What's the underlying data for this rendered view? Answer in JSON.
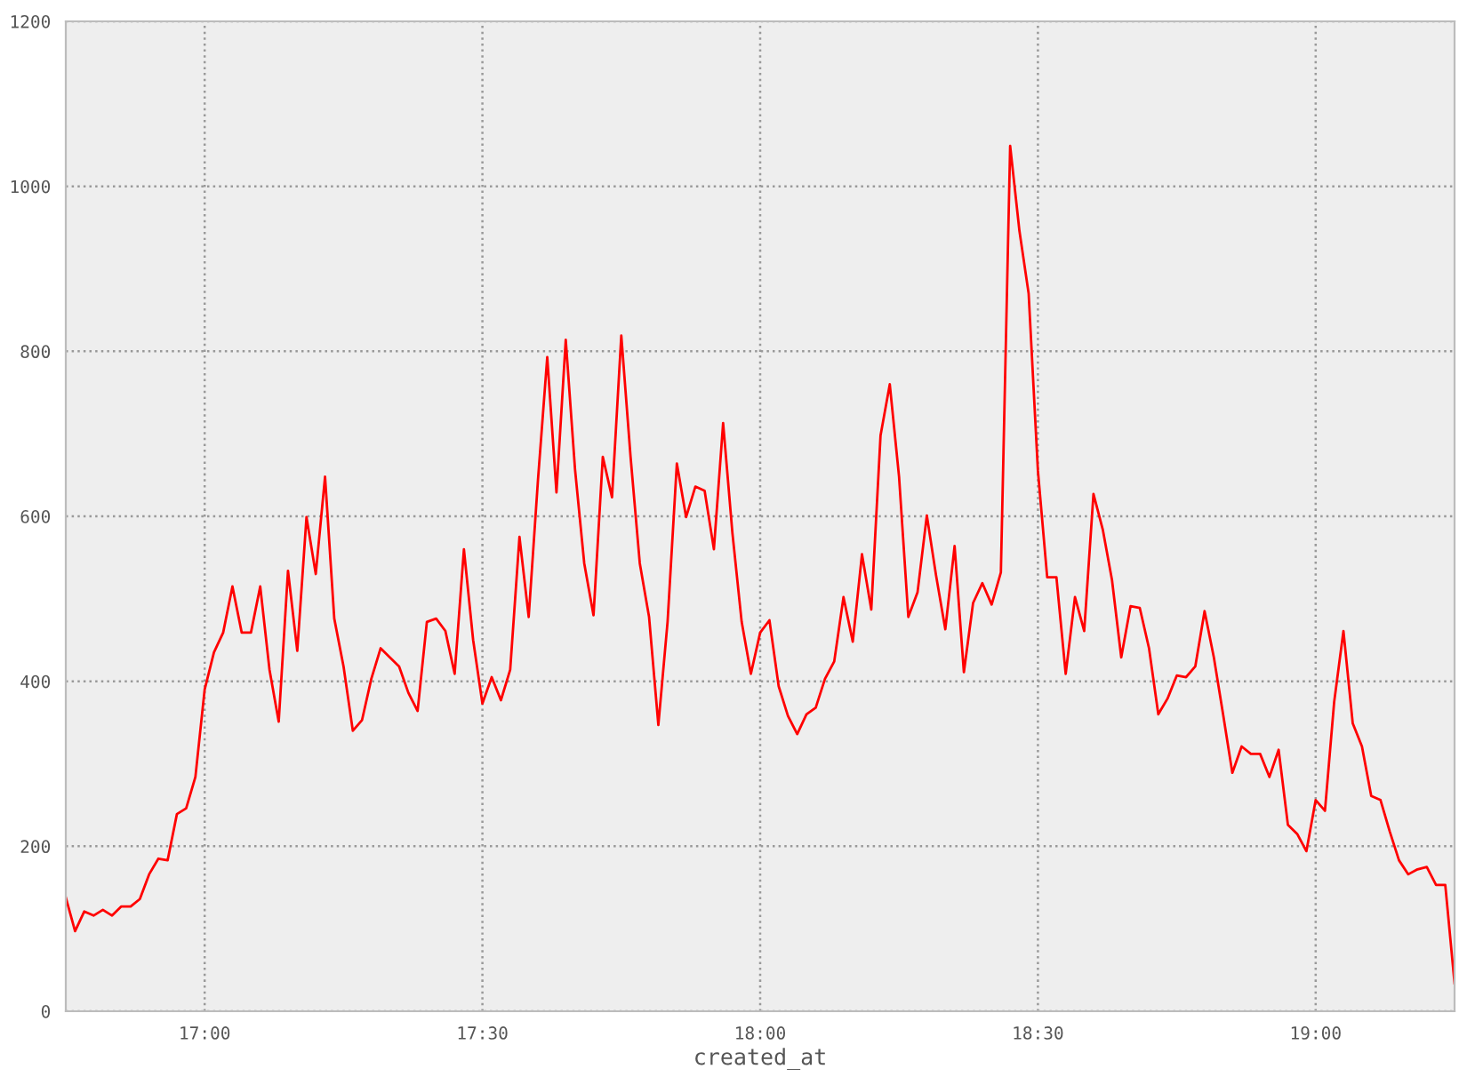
{
  "chart_data": {
    "type": "line",
    "xlabel": "created_at",
    "x": [
      16.75,
      16.7667,
      16.7833,
      16.8,
      16.8167,
      16.8333,
      16.85,
      16.8667,
      16.8833,
      16.9,
      16.9167,
      16.9333,
      16.95,
      16.9667,
      16.9833,
      17,
      17.0167,
      17.0333,
      17.05,
      17.0667,
      17.0833,
      17.1,
      17.1167,
      17.1333,
      17.15,
      17.1667,
      17.1833,
      17.2,
      17.2167,
      17.2333,
      17.25,
      17.2667,
      17.2833,
      17.3,
      17.3167,
      17.3333,
      17.35,
      17.3667,
      17.3833,
      17.4,
      17.4167,
      17.4333,
      17.45,
      17.4667,
      17.4833,
      17.5,
      17.5167,
      17.5333,
      17.55,
      17.5667,
      17.5833,
      17.6,
      17.6167,
      17.6333,
      17.65,
      17.6667,
      17.6833,
      17.7,
      17.7167,
      17.7333,
      17.75,
      17.7667,
      17.7833,
      17.8,
      17.8167,
      17.8333,
      17.85,
      17.8667,
      17.8833,
      17.9,
      17.9167,
      17.9333,
      17.95,
      17.9667,
      17.9833,
      18,
      18.0167,
      18.0333,
      18.05,
      18.0667,
      18.0833,
      18.1,
      18.1167,
      18.1333,
      18.15,
      18.1667,
      18.1833,
      18.2,
      18.2167,
      18.2333,
      18.25,
      18.2667,
      18.2833,
      18.3,
      18.3167,
      18.3333,
      18.35,
      18.3667,
      18.3833,
      18.4,
      18.4167,
      18.4333,
      18.45,
      18.4667,
      18.4833,
      18.5,
      18.5167,
      18.5333,
      18.55,
      18.5667,
      18.5833,
      18.6,
      18.6167,
      18.6333,
      18.65,
      18.6667,
      18.6833,
      18.7,
      18.7167,
      18.7333,
      18.75,
      18.7667,
      18.7833,
      18.8,
      18.8167,
      18.8333,
      18.85,
      18.8667,
      18.8833,
      18.9,
      18.9167,
      18.9333,
      18.95,
      18.9667,
      18.9833,
      19,
      19.0167,
      19.0333,
      19.05,
      19.0667,
      19.0833,
      19.1,
      19.1167,
      19.1333,
      19.15,
      19.1667,
      19.1833,
      19.2,
      19.2167,
      19.2333,
      19.25
    ],
    "series": [
      {
        "color": "#ff0000",
        "values": [
          138,
          97,
          121,
          116,
          123,
          116,
          127,
          127,
          136,
          166,
          185,
          183,
          239,
          246,
          284,
          390,
          435,
          459,
          515,
          459,
          459,
          515,
          414,
          351,
          534,
          437,
          599,
          530,
          648,
          476,
          418,
          340,
          353,
          403,
          440,
          429,
          418,
          386,
          364,
          472,
          476,
          461,
          409,
          560,
          450,
          373,
          405,
          377,
          414,
          575,
          478,
          644,
          793,
          629,
          814,
          657,
          543,
          480,
          672,
          623,
          819,
          672,
          543,
          478,
          347,
          472,
          664,
          599,
          636,
          631,
          560,
          713,
          580,
          472,
          409,
          459,
          474,
          394,
          358,
          336,
          360,
          368,
          403,
          424,
          502,
          448,
          554,
          487,
          698,
          760,
          648,
          478,
          508,
          601,
          528,
          463,
          564,
          411,
          495,
          519,
          493,
          532,
          1049,
          946,
          870,
          655,
          526,
          526,
          409,
          502,
          461,
          627,
          584,
          523,
          429,
          491,
          489,
          440,
          360,
          379,
          407,
          405,
          418,
          485,
          429,
          360,
          289,
          321,
          312,
          312,
          284,
          317,
          226,
          215,
          194,
          256,
          243,
          375,
          461,
          349,
          321,
          261,
          256,
          218,
          183,
          166,
          172,
          175,
          153,
          153,
          34
        ]
      }
    ],
    "xlim": [
      16.75,
      19.25
    ],
    "xticks": [
      {
        "value": 17,
        "label": "17:00"
      },
      {
        "value": 17.5,
        "label": "17:30"
      },
      {
        "value": 18,
        "label": "18:00"
      },
      {
        "value": 18.5,
        "label": "18:30"
      },
      {
        "value": 19,
        "label": "19:00"
      }
    ],
    "ylim": [
      0,
      1200
    ],
    "yticks": [
      0,
      200,
      400,
      600,
      800,
      1000,
      1200
    ],
    "grid": true,
    "line_style": "solid"
  }
}
